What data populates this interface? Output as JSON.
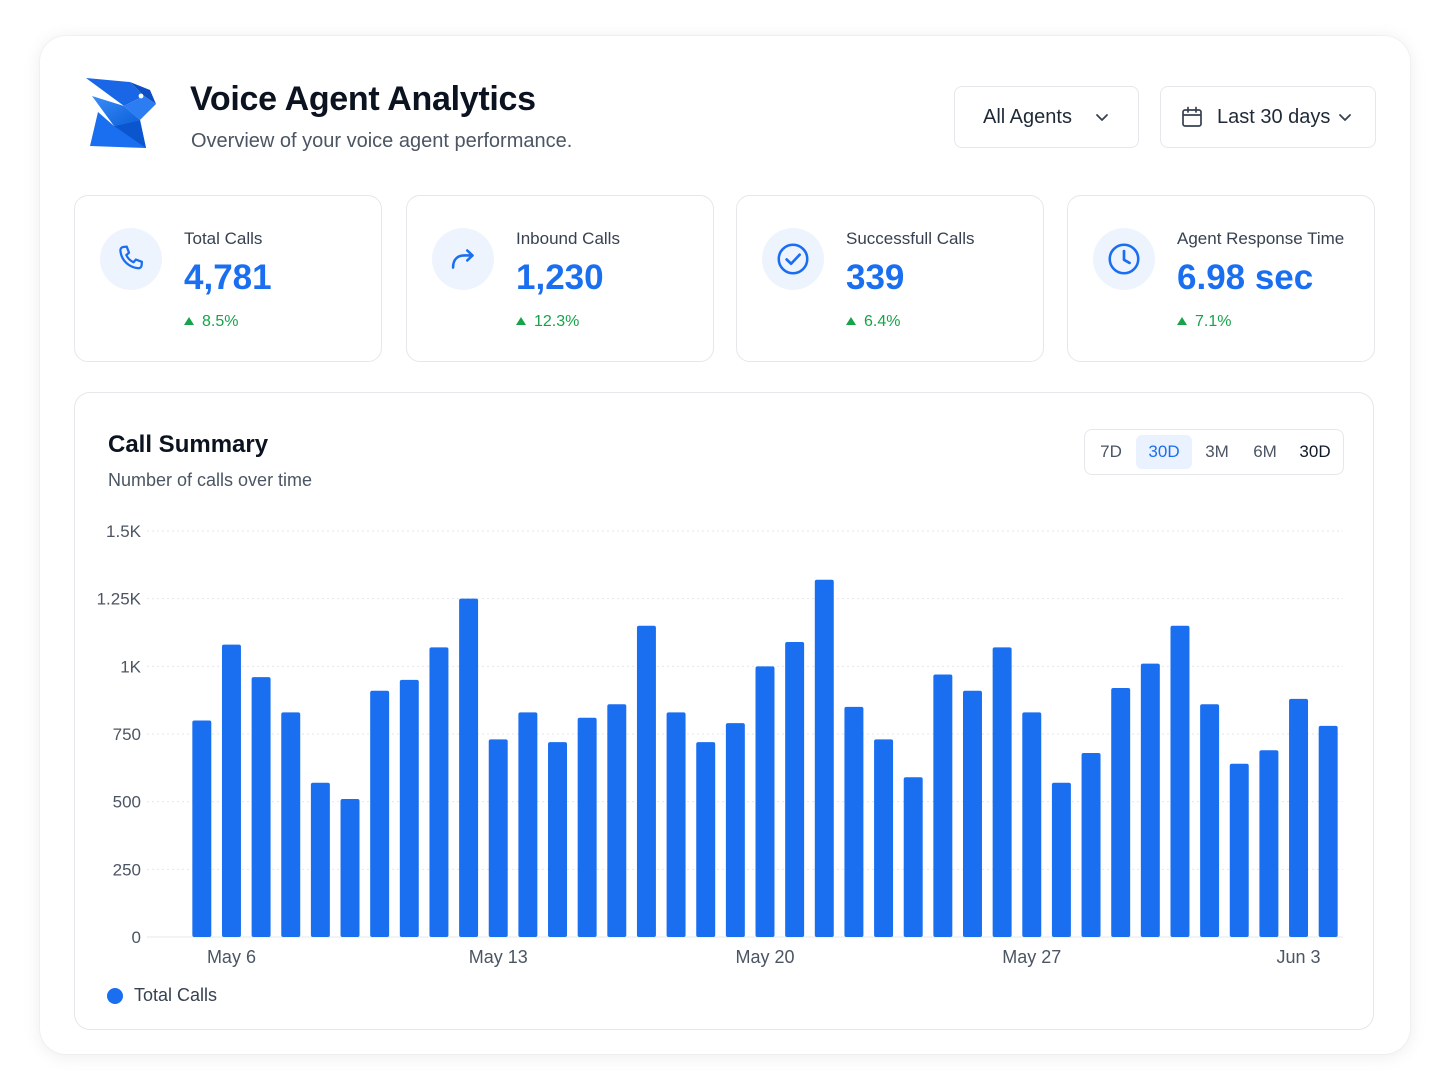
{
  "header": {
    "title": "Voice Agent Analytics",
    "subtitle": "Overview of your voice agent performance.",
    "logo_icon": "bird-logo-icon"
  },
  "filters": {
    "agents_label": "All Agents",
    "range_label": "Last 30 days"
  },
  "stats": [
    {
      "label": "Total Calls",
      "value": "4,781",
      "delta": "8.5%",
      "icon": "phone-icon"
    },
    {
      "label": "Inbound Calls",
      "value": "1,230",
      "delta": "12.3%",
      "icon": "forward-arrow-icon"
    },
    {
      "label": "Successfull Calls",
      "value": "339",
      "delta": "6.4%",
      "icon": "check-circle-icon"
    },
    {
      "label": "Agent Response Time",
      "value": "6.98 sec",
      "delta": "7.1%",
      "icon": "clock-icon"
    }
  ],
  "call_summary": {
    "title": "Call Summary",
    "subtitle": "Number of calls over time",
    "periods": [
      "7D",
      "30D",
      "3M",
      "6M",
      "30D"
    ],
    "active_period_index": 1
  },
  "colors": {
    "accent": "#1a6ff0",
    "positive": "#16a34a"
  },
  "chart_data": {
    "type": "bar",
    "title": "",
    "xlabel": "",
    "ylabel": "",
    "ylim": [
      0,
      1500
    ],
    "y_ticks": [
      0,
      250,
      500,
      750,
      1000,
      1250,
      1500
    ],
    "y_tick_labels": [
      "0",
      "250",
      "500",
      "750",
      "1K",
      "1.25K",
      "1.5K"
    ],
    "x_tick_labels": [
      {
        "label": "May 6",
        "index": 1
      },
      {
        "label": "May 13",
        "index": 10
      },
      {
        "label": "May 20",
        "index": 19
      },
      {
        "label": "May 27",
        "index": 28
      },
      {
        "label": "Jun 3",
        "index": 37
      }
    ],
    "grid": true,
    "legend_position": "bottom-left",
    "series": [
      {
        "name": "Total Calls",
        "values": [
          800,
          1080,
          960,
          830,
          570,
          510,
          910,
          950,
          1070,
          1250,
          730,
          830,
          720,
          810,
          860,
          1150,
          830,
          720,
          790,
          1000,
          1090,
          1320,
          850,
          730,
          590,
          970,
          910,
          1070,
          830,
          570,
          680,
          920,
          1010,
          1150,
          860,
          640,
          690,
          880,
          780
        ]
      }
    ]
  }
}
